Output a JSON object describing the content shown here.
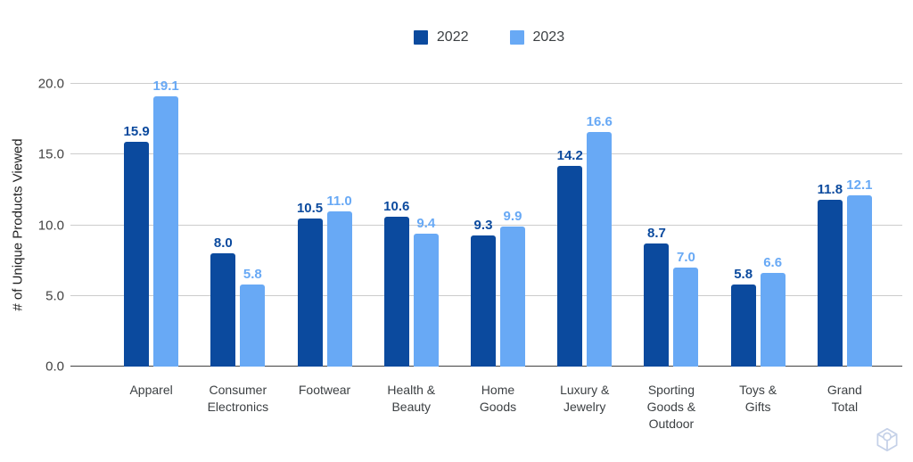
{
  "legend": {
    "items": [
      {
        "label": "2022",
        "color": "#0b4a9e"
      },
      {
        "label": "2023",
        "color": "#68a9f5"
      }
    ]
  },
  "y_axis": {
    "title": "# of Unique Products Viewed",
    "tick_labels": [
      "0.0",
      "5.0",
      "10.0",
      "15.0",
      "20.0"
    ]
  },
  "colors": {
    "series_2022": "#0b4a9e",
    "series_2023": "#68a9f5",
    "gridline": "#cccccc",
    "baseline": "#424242",
    "axis_text": "#424242",
    "watermark": "#c5d1e8"
  },
  "watermark": {
    "icon": "cube-outline-icon"
  },
  "chart_data": {
    "type": "bar",
    "title": "",
    "xlabel": "",
    "ylabel": "# of Unique Products Viewed",
    "ylim": [
      0,
      20
    ],
    "yticks": [
      0,
      5,
      10,
      15,
      20
    ],
    "grid": true,
    "legend_position": "top-center",
    "value_labels_shown": true,
    "categories": [
      "Apparel",
      "Consumer Electronics",
      "Footwear",
      "Health & Beauty",
      "Home Goods",
      "Luxury & Jewelry",
      "Sporting Goods & Outdoor",
      "Toys & Gifts",
      "Grand Total"
    ],
    "category_lines": [
      [
        "Apparel"
      ],
      [
        "Consumer",
        "Electronics"
      ],
      [
        "Footwear"
      ],
      [
        "Health &",
        "Beauty"
      ],
      [
        "Home",
        "Goods"
      ],
      [
        "Luxury &",
        "Jewelry"
      ],
      [
        "Sporting",
        "Goods &",
        "Outdoor"
      ],
      [
        "Toys &",
        "Gifts"
      ],
      [
        "Grand",
        "Total"
      ]
    ],
    "series": [
      {
        "name": "2022",
        "color": "#0b4a9e",
        "values": [
          15.9,
          8.0,
          10.5,
          10.6,
          9.3,
          14.2,
          8.7,
          5.8,
          11.8
        ]
      },
      {
        "name": "2023",
        "color": "#68a9f5",
        "values": [
          19.1,
          5.8,
          11.0,
          9.4,
          9.9,
          16.6,
          7.0,
          6.6,
          12.1
        ]
      }
    ]
  }
}
